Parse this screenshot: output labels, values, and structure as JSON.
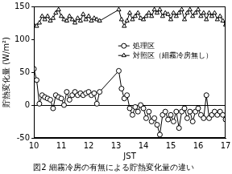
{
  "chart_data": {
    "type": "line",
    "title": "図2 細霧冷房の有無による貯熱変化量の違い",
    "x_label": "JST",
    "y_label": "貯熱変化量 (W/m²)",
    "x": [
      10.0,
      10.1,
      10.2,
      10.3,
      10.4,
      10.5,
      10.6,
      10.7,
      10.8,
      10.9,
      11.0,
      11.1,
      11.2,
      11.3,
      11.4,
      11.5,
      11.6,
      11.7,
      11.8,
      11.9,
      12.0,
      12.1,
      12.2,
      12.3,
      12.4,
      13.1,
      13.2,
      13.3,
      13.4,
      13.5,
      13.6,
      13.7,
      13.8,
      13.9,
      14.0,
      14.1,
      14.2,
      14.3,
      14.4,
      14.5,
      14.6,
      14.7,
      14.8,
      14.9,
      15.0,
      15.1,
      15.2,
      15.3,
      15.4,
      15.5,
      15.6,
      15.7,
      15.8,
      15.9,
      16.0,
      16.1,
      16.2,
      16.3,
      16.4,
      16.5,
      16.6,
      16.7,
      16.8,
      16.9,
      17.0
    ],
    "series": [
      {
        "name": "処理区",
        "color": "#000000",
        "marker": "circle",
        "line_style": "solid",
        "values": [
          55,
          38,
          2,
          15,
          12,
          10,
          8,
          -5,
          15,
          12,
          10,
          0,
          20,
          8,
          15,
          20,
          15,
          18,
          15,
          18,
          20,
          15,
          18,
          2,
          20,
          52,
          25,
          10,
          15,
          -5,
          -15,
          -3,
          -10,
          0,
          -5,
          -20,
          -10,
          -25,
          -20,
          -30,
          -45,
          -15,
          -10,
          -22,
          -15,
          -25,
          -10,
          -35,
          -10,
          -5,
          -20,
          -10,
          -25,
          -10,
          -5,
          -15,
          -20,
          15,
          -20,
          -15,
          -10,
          -15,
          -10,
          -15,
          -22
        ]
      },
      {
        "name": "対照区（細霧冷房無し）",
        "color": "#000000",
        "marker": "triangle",
        "line_style": "solid",
        "values": [
          122,
          120,
          125,
          135,
          130,
          135,
          128,
          132,
          140,
          145,
          135,
          130,
          128,
          135,
          130,
          125,
          132,
          128,
          138,
          130,
          135,
          128,
          132,
          130,
          128,
          145,
          130,
          120,
          128,
          140,
          130,
          135,
          140,
          132,
          130,
          135,
          140,
          135,
          145,
          140,
          145,
          135,
          140,
          138,
          130,
          140,
          135,
          140,
          145,
          130,
          140,
          145,
          135,
          140,
          145,
          135,
          140,
          130,
          140,
          135,
          140,
          130,
          135,
          128,
          122
        ]
      }
    ],
    "xlim": [
      10,
      17
    ],
    "xticks": [
      10,
      11,
      12,
      13,
      14,
      15,
      16,
      17
    ],
    "ylim": [
      -50,
      150
    ],
    "yticks": [
      -50,
      0,
      50,
      100,
      150
    ],
    "grid": false,
    "legend": "right"
  }
}
